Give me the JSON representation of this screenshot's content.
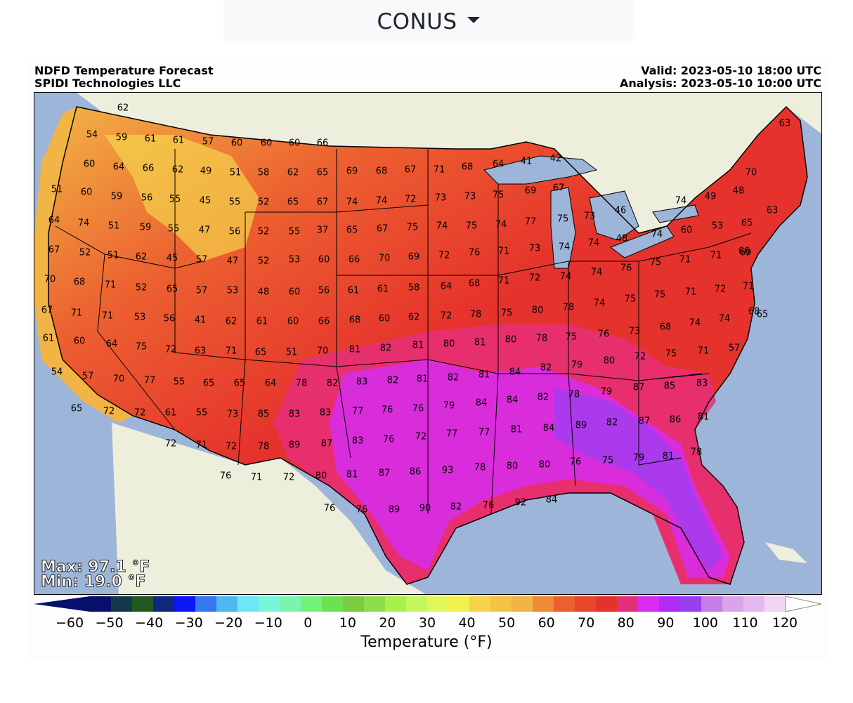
{
  "region_selector": {
    "label": "CONUS",
    "icon": "caret-down-icon"
  },
  "header": {
    "title": "NDFD Temperature Forecast",
    "credit": "SPIDI Technologies LLC",
    "valid": "Valid: 2023-05-10 18:00 UTC",
    "analysis": "Analysis: 2023-05-10 10:00 UTC"
  },
  "stats": {
    "max": "Max: 97.1 °F",
    "min": "Min: 19.0 °F"
  },
  "colorbar": {
    "label": "Temperature (°F)",
    "ticks": [
      "−60",
      "−50",
      "−40",
      "−30",
      "−20",
      "−10",
      "0",
      "10",
      "20",
      "30",
      "40",
      "50",
      "60",
      "70",
      "80",
      "90",
      "100",
      "110",
      "120"
    ],
    "tick_values": [
      -60,
      -50,
      -40,
      -30,
      -20,
      -10,
      0,
      10,
      20,
      30,
      40,
      50,
      60,
      70,
      80,
      90,
      100,
      110,
      120
    ],
    "range": [
      -60,
      120
    ],
    "colors": [
      "#08106e",
      "#14394a",
      "#225a22",
      "#10287f",
      "#0d16f5",
      "#3378f0",
      "#4eb7f0",
      "#6ee7f5",
      "#79f5d8",
      "#7af5b0",
      "#73f27a",
      "#6de152",
      "#7cca3f",
      "#8ede4a",
      "#a9f04d",
      "#c6f55e",
      "#e2f55b",
      "#f2f04e",
      "#f5d44b",
      "#f3c247",
      "#f2b444",
      "#ef8a37",
      "#ec6030",
      "#e8472e",
      "#e6322c",
      "#e62f7a",
      "#d62df0",
      "#b02bf5",
      "#9a3ff0",
      "#c67de8",
      "#dba3ea",
      "#e6b6ee",
      "#efd5f3",
      "#ffffff"
    ]
  },
  "map": {
    "colors": {
      "ocean": "#9db5d9",
      "land": "#eeeedc",
      "lakes": "#9db5d9",
      "border": "#000000"
    },
    "temperature_labels": [
      "62",
      "54",
      "59",
      "61",
      "61",
      "57",
      "60",
      "60",
      "60",
      "66",
      "60",
      "64",
      "66",
      "62",
      "49",
      "51",
      "58",
      "62",
      "65",
      "69",
      "68",
      "67",
      "71",
      "68",
      "64",
      "41",
      "42",
      "63",
      "51",
      "60",
      "59",
      "56",
      "55",
      "45",
      "55",
      "52",
      "65",
      "67",
      "74",
      "74",
      "72",
      "73",
      "73",
      "75",
      "69",
      "67",
      "70",
      "64",
      "74",
      "51",
      "59",
      "55",
      "47",
      "56",
      "52",
      "55",
      "37",
      "65",
      "67",
      "75",
      "74",
      "75",
      "74",
      "77",
      "75",
      "73",
      "46",
      "74",
      "49",
      "48",
      "63",
      "67",
      "52",
      "51",
      "62",
      "45",
      "57",
      "47",
      "52",
      "53",
      "60",
      "66",
      "70",
      "69",
      "72",
      "76",
      "71",
      "73",
      "74",
      "74",
      "48",
      "74",
      "60",
      "53",
      "65",
      "66",
      "70",
      "68",
      "71",
      "52",
      "65",
      "57",
      "53",
      "48",
      "60",
      "56",
      "61",
      "61",
      "58",
      "64",
      "68",
      "71",
      "72",
      "74",
      "74",
      "76",
      "75",
      "71",
      "71",
      "69",
      "67",
      "71",
      "71",
      "53",
      "56",
      "41",
      "62",
      "61",
      "60",
      "66",
      "68",
      "60",
      "62",
      "72",
      "78",
      "75",
      "80",
      "78",
      "74",
      "75",
      "75",
      "71",
      "72",
      "71",
      "65",
      "61",
      "60",
      "64",
      "75",
      "72",
      "63",
      "71",
      "65",
      "51",
      "70",
      "81",
      "82",
      "81",
      "80",
      "81",
      "80",
      "78",
      "75",
      "76",
      "73",
      "68",
      "74",
      "74",
      "68",
      "54",
      "57",
      "70",
      "77",
      "55",
      "65",
      "65",
      "64",
      "78",
      "82",
      "83",
      "82",
      "81",
      "82",
      "81",
      "84",
      "82",
      "79",
      "80",
      "72",
      "75",
      "71",
      "57",
      "65",
      "72",
      "72",
      "61",
      "55",
      "73",
      "85",
      "83",
      "83",
      "77",
      "76",
      "76",
      "79",
      "84",
      "84",
      "82",
      "78",
      "79",
      "87",
      "85",
      "83",
      "72",
      "71",
      "72",
      "78",
      "89",
      "87",
      "83",
      "76",
      "72",
      "77",
      "77",
      "81",
      "84",
      "89",
      "82",
      "87",
      "86",
      "81",
      "76",
      "71",
      "72",
      "80",
      "81",
      "87",
      "86",
      "93",
      "78",
      "80",
      "80",
      "76",
      "75",
      "79",
      "81",
      "78",
      "76",
      "76",
      "89",
      "90",
      "82",
      "76",
      "92",
      "84"
    ]
  }
}
